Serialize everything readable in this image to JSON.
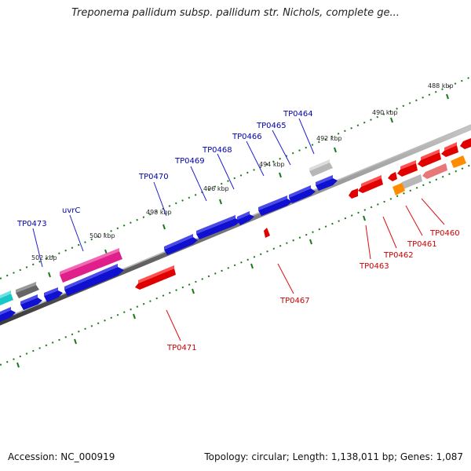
{
  "title": "Treponema pallidum subsp. pallidum str. Nichols, complete ge...",
  "footer": {
    "accession": "Accession: NC_000919",
    "summary": "Topology: circular; Length: 1,138,011 bp; Genes: 1,087"
  },
  "colors": {
    "forward_label": "#0000aa",
    "reverse_label": "#cc0000",
    "backbone": "#888888",
    "tick": "#1a7a1a"
  },
  "ticks": [
    "488 kbp",
    "490 kbp",
    "492 kbp",
    "494 kbp",
    "496 kbp",
    "498 kbp",
    "500 kbp",
    "502 kbp"
  ],
  "forward_labels": [
    "TP0464",
    "TP0465",
    "TP0466",
    "TP0468",
    "TP0469",
    "TP0470",
    "uvrC",
    "TP0473"
  ],
  "reverse_labels": [
    "TP0460",
    "TP0461",
    "TP0462",
    "TP0463",
    "TP0467",
    "TP0471"
  ]
}
